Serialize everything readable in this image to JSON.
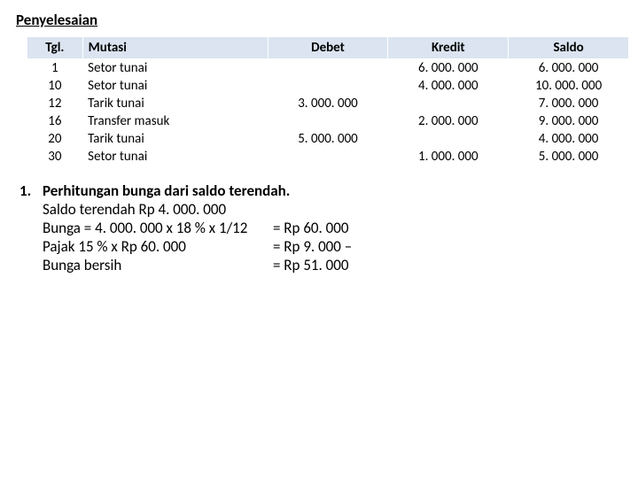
{
  "title": "Penyelesaian",
  "table": {
    "headers": {
      "tgl": "Tgl.",
      "mutasi": "Mutasi",
      "debet": "Debet",
      "kredit": "Kredit",
      "saldo": "Saldo"
    },
    "rows": [
      {
        "tgl": "1",
        "mutasi": "Setor tunai",
        "debet": "",
        "kredit": "6. 000. 000",
        "saldo": "6. 000. 000"
      },
      {
        "tgl": "10",
        "mutasi": "Setor tunai",
        "debet": "",
        "kredit": "4. 000. 000",
        "saldo": "10. 000. 000"
      },
      {
        "tgl": "12",
        "mutasi": "Tarik tunai",
        "debet": "3. 000. 000",
        "kredit": "",
        "saldo": "7. 000. 000"
      },
      {
        "tgl": "16",
        "mutasi": "Transfer masuk",
        "debet": "",
        "kredit": "2. 000. 000",
        "saldo": "9. 000. 000"
      },
      {
        "tgl": "20",
        "mutasi": "Tarik tunai",
        "debet": "5. 000. 000",
        "kredit": "",
        "saldo": "4. 000. 000"
      },
      {
        "tgl": "30",
        "mutasi": "Setor tunai",
        "debet": "",
        "kredit": "1. 000. 000",
        "saldo": "5. 000. 000"
      }
    ]
  },
  "notes": {
    "number": "1.",
    "line1": "Perhitungan bunga dari saldo terendah.",
    "line2": "Saldo terendah Rp 4. 000. 000",
    "calc": [
      {
        "left": "Bunga = 4. 000. 000 x 18 % x 1/12",
        "right": "= Rp 60. 000"
      },
      {
        "left": "Pajak 15 % x Rp 60. 000",
        "right": "= Rp   9. 000 –"
      },
      {
        "left": "Bunga bersih",
        "right": "= Rp 51. 000"
      }
    ]
  }
}
